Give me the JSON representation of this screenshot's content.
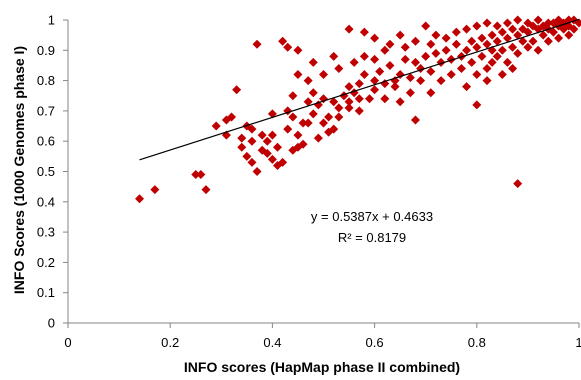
{
  "chart_data": {
    "type": "scatter",
    "title": "",
    "xlabel": "INFO scores (HapMap phase II combined)",
    "ylabel": "INFO Scores (1000 Genomes phase I)",
    "xlim": [
      0,
      1
    ],
    "ylim": [
      0,
      1
    ],
    "x_ticks": [
      "0",
      "0.2",
      "0.4",
      "0.6",
      "0.8",
      "1"
    ],
    "y_ticks": [
      "0",
      "0.1",
      "0.2",
      "0.3",
      "0.4",
      "0.5",
      "0.6",
      "0.7",
      "0.8",
      "0.9",
      "1"
    ],
    "grid": false,
    "marker": "diamond",
    "marker_color": "#C00000",
    "trendline": {
      "type": "linear",
      "slope": 0.5387,
      "intercept": 0.4633,
      "x_range": [
        0.14,
        1.0
      ],
      "color": "#000000",
      "equation": "y = 0.5387x + 0.4633",
      "r_squared": "R² = 0.8179"
    },
    "points": [
      [
        0.14,
        0.41
      ],
      [
        0.17,
        0.44
      ],
      [
        0.25,
        0.49
      ],
      [
        0.26,
        0.49
      ],
      [
        0.27,
        0.44
      ],
      [
        0.29,
        0.65
      ],
      [
        0.31,
        0.62
      ],
      [
        0.31,
        0.67
      ],
      [
        0.32,
        0.68
      ],
      [
        0.33,
        0.77
      ],
      [
        0.34,
        0.61
      ],
      [
        0.35,
        0.65
      ],
      [
        0.35,
        0.55
      ],
      [
        0.36,
        0.53
      ],
      [
        0.36,
        0.6
      ],
      [
        0.37,
        0.92
      ],
      [
        0.37,
        0.5
      ],
      [
        0.38,
        0.62
      ],
      [
        0.39,
        0.56
      ],
      [
        0.39,
        0.6
      ],
      [
        0.4,
        0.62
      ],
      [
        0.4,
        0.54
      ],
      [
        0.41,
        0.52
      ],
      [
        0.42,
        0.53
      ],
      [
        0.43,
        0.7
      ],
      [
        0.44,
        0.68
      ],
      [
        0.45,
        0.62
      ],
      [
        0.44,
        0.75
      ],
      [
        0.45,
        0.58
      ],
      [
        0.46,
        0.59
      ],
      [
        0.46,
        0.66
      ],
      [
        0.47,
        0.66
      ],
      [
        0.47,
        0.73
      ],
      [
        0.48,
        0.69
      ],
      [
        0.48,
        0.76
      ],
      [
        0.49,
        0.72
      ],
      [
        0.5,
        0.74
      ],
      [
        0.5,
        0.66
      ],
      [
        0.51,
        0.68
      ],
      [
        0.52,
        0.73
      ],
      [
        0.52,
        0.64
      ],
      [
        0.53,
        0.71
      ],
      [
        0.54,
        0.75
      ],
      [
        0.55,
        0.73
      ],
      [
        0.55,
        0.78
      ],
      [
        0.56,
        0.76
      ],
      [
        0.57,
        0.79
      ],
      [
        0.57,
        0.7
      ],
      [
        0.58,
        0.82
      ],
      [
        0.59,
        0.74
      ],
      [
        0.6,
        0.8
      ],
      [
        0.6,
        0.77
      ],
      [
        0.61,
        0.83
      ],
      [
        0.62,
        0.79
      ],
      [
        0.63,
        0.85
      ],
      [
        0.64,
        0.78
      ],
      [
        0.65,
        0.82
      ],
      [
        0.66,
        0.87
      ],
      [
        0.67,
        0.81
      ],
      [
        0.68,
        0.86
      ],
      [
        0.69,
        0.84
      ],
      [
        0.7,
        0.88
      ],
      [
        0.71,
        0.83
      ],
      [
        0.72,
        0.89
      ],
      [
        0.73,
        0.86
      ],
      [
        0.74,
        0.9
      ],
      [
        0.75,
        0.87
      ],
      [
        0.76,
        0.92
      ],
      [
        0.77,
        0.88
      ],
      [
        0.78,
        0.9
      ],
      [
        0.79,
        0.93
      ],
      [
        0.8,
        0.91
      ],
      [
        0.81,
        0.94
      ],
      [
        0.82,
        0.92
      ],
      [
        0.83,
        0.95
      ],
      [
        0.84,
        0.93
      ],
      [
        0.85,
        0.96
      ],
      [
        0.86,
        0.94
      ],
      [
        0.87,
        0.97
      ],
      [
        0.88,
        0.95
      ],
      [
        0.89,
        0.97
      ],
      [
        0.9,
        0.96
      ],
      [
        0.91,
        0.98
      ],
      [
        0.92,
        0.97
      ],
      [
        0.93,
        0.98
      ],
      [
        0.94,
        0.97
      ],
      [
        0.95,
        0.99
      ],
      [
        0.96,
        0.98
      ],
      [
        0.97,
        0.99
      ],
      [
        0.98,
        0.98
      ],
      [
        0.99,
        1.0
      ],
      [
        1.0,
        0.99
      ],
      [
        0.42,
        0.93
      ],
      [
        0.43,
        0.91
      ],
      [
        0.45,
        0.9
      ],
      [
        0.55,
        0.97
      ],
      [
        0.58,
        0.96
      ],
      [
        0.6,
        0.94
      ],
      [
        0.65,
        0.95
      ],
      [
        0.7,
        0.98
      ],
      [
        0.72,
        0.95
      ],
      [
        0.62,
        0.9
      ],
      [
        0.58,
        0.88
      ],
      [
        0.52,
        0.88
      ],
      [
        0.5,
        0.82
      ],
      [
        0.48,
        0.86
      ],
      [
        0.45,
        0.82
      ],
      [
        0.47,
        0.8
      ],
      [
        0.53,
        0.84
      ],
      [
        0.56,
        0.86
      ],
      [
        0.6,
        0.87
      ],
      [
        0.63,
        0.92
      ],
      [
        0.66,
        0.91
      ],
      [
        0.68,
        0.93
      ],
      [
        0.71,
        0.92
      ],
      [
        0.74,
        0.94
      ],
      [
        0.76,
        0.96
      ],
      [
        0.78,
        0.97
      ],
      [
        0.8,
        0.98
      ],
      [
        0.82,
        0.99
      ],
      [
        0.84,
        0.98
      ],
      [
        0.86,
        0.99
      ],
      [
        0.88,
        1.0
      ],
      [
        0.9,
        0.99
      ],
      [
        0.92,
        1.0
      ],
      [
        0.94,
        0.99
      ],
      [
        0.96,
        1.0
      ],
      [
        0.98,
        1.0
      ],
      [
        0.8,
        0.82
      ],
      [
        0.82,
        0.84
      ],
      [
        0.84,
        0.88
      ],
      [
        0.86,
        0.86
      ],
      [
        0.88,
        0.89
      ],
      [
        0.9,
        0.91
      ],
      [
        0.92,
        0.9
      ],
      [
        0.94,
        0.93
      ],
      [
        0.96,
        0.94
      ],
      [
        0.98,
        0.95
      ],
      [
        0.79,
        0.86
      ],
      [
        0.81,
        0.88
      ],
      [
        0.83,
        0.9
      ],
      [
        0.85,
        0.9
      ],
      [
        0.87,
        0.91
      ],
      [
        0.89,
        0.93
      ],
      [
        0.91,
        0.93
      ],
      [
        0.93,
        0.95
      ],
      [
        0.95,
        0.96
      ],
      [
        0.97,
        0.97
      ],
      [
        0.99,
        0.97
      ],
      [
        0.68,
        0.67
      ],
      [
        0.62,
        0.74
      ],
      [
        0.64,
        0.8
      ],
      [
        0.57,
        0.74
      ],
      [
        0.55,
        0.71
      ],
      [
        0.53,
        0.68
      ],
      [
        0.51,
        0.63
      ],
      [
        0.49,
        0.61
      ],
      [
        0.43,
        0.64
      ],
      [
        0.41,
        0.58
      ],
      [
        0.44,
        0.57
      ],
      [
        0.38,
        0.57
      ],
      [
        0.4,
        0.69
      ],
      [
        0.36,
        0.64
      ],
      [
        0.34,
        0.58
      ],
      [
        0.8,
        0.72
      ],
      [
        0.82,
        0.8
      ],
      [
        0.85,
        0.82
      ],
      [
        0.87,
        0.84
      ],
      [
        0.78,
        0.78
      ],
      [
        0.75,
        0.82
      ],
      [
        0.73,
        0.8
      ],
      [
        0.71,
        0.76
      ],
      [
        0.69,
        0.8
      ],
      [
        0.67,
        0.76
      ],
      [
        0.65,
        0.73
      ],
      [
        0.77,
        0.84
      ],
      [
        0.83,
        0.86
      ],
      [
        0.88,
        0.46
      ]
    ]
  }
}
